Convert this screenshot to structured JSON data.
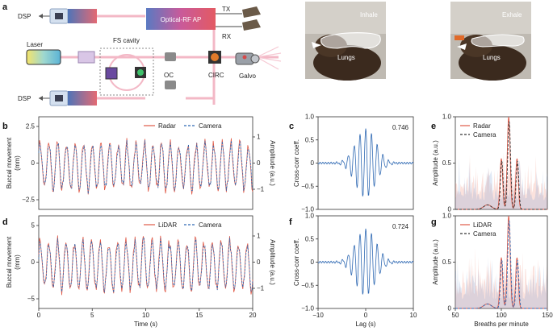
{
  "figure": {
    "panel_labels": [
      "a",
      "b",
      "c",
      "d",
      "e",
      "f",
      "g"
    ],
    "schematic": {
      "dsp_top": "DSP",
      "dsp_bottom": "DSP",
      "optical_rf": "Optical-RF AP",
      "tx": "TX",
      "rx": "RX",
      "laser": "Laser",
      "fs_cavity": "FS cavity",
      "circ": "CIRC",
      "oc": "OC",
      "galvo": "Galvo"
    },
    "photos": {
      "inhale": "Inhale",
      "exhale": "Exhale",
      "lungs_left": "Lungs",
      "lungs_right": "Lungs"
    },
    "colors": {
      "red": "#e05a48",
      "blue": "#2f69b3",
      "pink": "#f3b8c6",
      "purple": "#8e6ad1"
    }
  },
  "chart_data": [
    {
      "panel": "b",
      "type": "line",
      "ylabel": "Buccal movement\n(mm)",
      "y2label": "Amplitude (a.u.)",
      "yticks": [
        "2.5",
        "0",
        "−2.5"
      ],
      "y2ticks": [
        "1",
        "0",
        "−1"
      ],
      "ylim": [
        -3.5,
        3.8
      ],
      "xlim": [
        0,
        20
      ],
      "series": [
        {
          "name": "Radar"
        },
        {
          "name": "Camera"
        }
      ],
      "legend": "top-right"
    },
    {
      "panel": "e",
      "type": "line",
      "ylabel": "Buccal movement\n(mm)",
      "y2label": "Amplitude (a.u.)",
      "xlabel": "Time (s)",
      "xticks": [
        "0",
        "5",
        "10",
        "15",
        "20"
      ],
      "yticks": [
        "5",
        "0",
        "−5"
      ],
      "y2ticks": [
        "1",
        "0",
        "−1"
      ],
      "ylim": [
        -6.5,
        7
      ],
      "xlim": [
        0,
        20
      ],
      "series": [
        {
          "name": "LiDAR"
        },
        {
          "name": "Camera"
        }
      ],
      "legend": "top-right"
    },
    {
      "panel": "c",
      "type": "line",
      "ylabel": "Cross-corr coeff.",
      "annotation": "0.746",
      "yticks": [
        "1.0",
        "0.5",
        "0",
        "−0.5",
        "−1.0"
      ],
      "ylim": [
        -1,
        1
      ],
      "xlim": [
        -10,
        10
      ]
    },
    {
      "panel": "f",
      "type": "line",
      "ylabel": "Cross-corr coeff.",
      "annotation": "0.724",
      "xlabel": "Lag (s)",
      "xticks": [
        "−10",
        "0",
        "10"
      ],
      "yticks": [
        "1.0",
        "0.5",
        "0",
        "−0.5",
        "−1.0"
      ],
      "ylim": [
        -1,
        1
      ],
      "xlim": [
        -10,
        10
      ]
    },
    {
      "panel": "d",
      "type": "line",
      "ylabel": "Amplitude (a.u.)",
      "yticks": [
        "1.0",
        "0.5",
        "0"
      ],
      "ylim": [
        0,
        1
      ],
      "xlim": [
        50,
        150
      ],
      "series": [
        {
          "name": "Radar"
        },
        {
          "name": "Camera"
        }
      ],
      "legend": "top-left"
    },
    {
      "panel": "g",
      "type": "line",
      "ylabel": "Amplitude (a.u.)",
      "xlabel": "Breaths per minute",
      "xticks": [
        "50",
        "100",
        "150"
      ],
      "yticks": [
        "1.0",
        "0.5",
        "0"
      ],
      "ylim": [
        0,
        1
      ],
      "xlim": [
        50,
        150
      ],
      "series": [
        {
          "name": "LiDAR"
        },
        {
          "name": "Camera"
        }
      ],
      "legend": "top-left"
    }
  ]
}
